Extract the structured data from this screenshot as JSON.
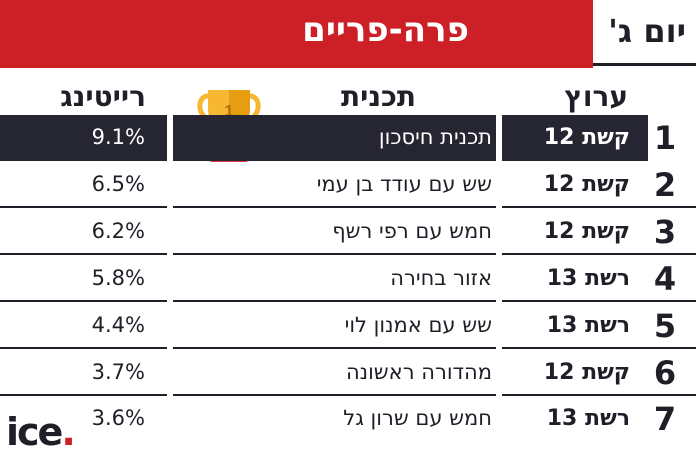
{
  "header": {
    "title": "פרה-פריים",
    "day": "יום ג'"
  },
  "columns": {
    "channel": "ערוץ",
    "show": "תכנית",
    "rating": "רייטינג"
  },
  "trophy": {
    "rank": "1",
    "icon": "trophy-icon"
  },
  "rows": [
    {
      "rank": "1",
      "channel": "קשת 12",
      "show": "תכנית חיסכון",
      "rating": "9.1%"
    },
    {
      "rank": "2",
      "channel": "קשת 12",
      "show": "שש עם עודד בן עמי",
      "rating": "6.5%"
    },
    {
      "rank": "3",
      "channel": "קשת 12",
      "show": "חמש עם רפי רשף",
      "rating": "6.2%"
    },
    {
      "rank": "4",
      "channel": "רשת 13",
      "show": "אזור בחירה",
      "rating": "5.8%"
    },
    {
      "rank": "5",
      "channel": "רשת 13",
      "show": "שש עם אמנון לוי",
      "rating": "4.4%"
    },
    {
      "rank": "6",
      "channel": "קשת 12",
      "show": "מהדורה ראשונה",
      "rating": "3.7%"
    },
    {
      "rank": "7",
      "channel": "רשת 13",
      "show": "חמש עם שרון גל",
      "rating": "3.6%"
    }
  ],
  "logo": {
    "text": "ice",
    "dot": "."
  },
  "colors": {
    "accent": "#cc1f26",
    "dark": "#262633",
    "trophy_gold": "#f7b731",
    "trophy_base": "#e23a3a"
  }
}
